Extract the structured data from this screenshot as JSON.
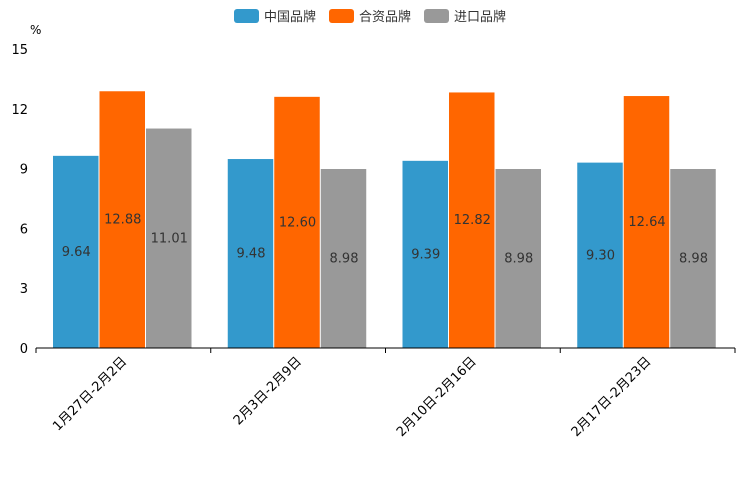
{
  "chart_data": {
    "type": "bar",
    "title": "",
    "unit": "%",
    "xlabel": "",
    "ylabel": "%",
    "ylim": [
      0,
      15
    ],
    "yticks": [
      "0",
      "3",
      "6",
      "9",
      "12",
      "15"
    ],
    "grid": false,
    "legend_position": "top-center",
    "categories": [
      "1月27日-2月2日",
      "2月3日-2月9日",
      "2月10日-2月16日",
      "2月17日-2月23日"
    ],
    "series": [
      {
        "name": "中国品牌",
        "color": "#3399cc",
        "values": [
          9.64,
          9.48,
          9.39,
          9.3
        ],
        "labels": [
          "9.64",
          "9.48",
          "9.39",
          "9.30"
        ]
      },
      {
        "name": "合资品牌",
        "color": "#ff6600",
        "values": [
          12.88,
          12.6,
          12.82,
          12.64
        ],
        "labels": [
          "12.88",
          "12.60",
          "12.82",
          "12.64"
        ]
      },
      {
        "name": "进口品牌",
        "color": "#999999",
        "values": [
          11.01,
          8.98,
          8.98,
          8.98
        ],
        "labels": [
          "11.01",
          "8.98",
          "8.98",
          "8.98"
        ]
      }
    ]
  }
}
